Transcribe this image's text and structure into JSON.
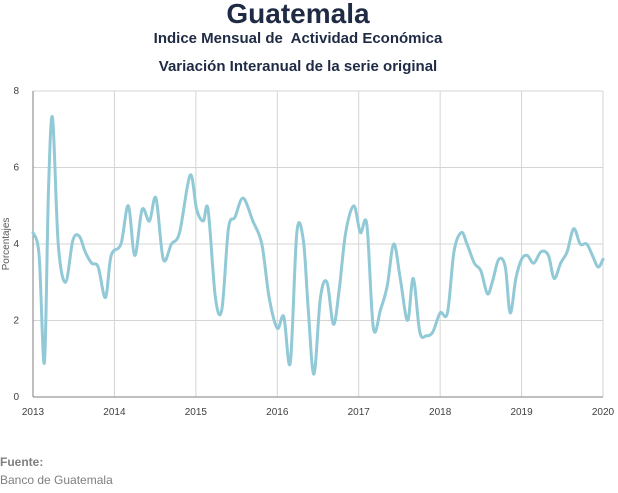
{
  "chart_data": {
    "type": "line",
    "title": "Guatemala",
    "subtitle": "Indice Mensual de  Actividad Económica",
    "subtitle2": "Variación Interanual de la serie original",
    "ylabel": "Porcentajes",
    "xlabel": "",
    "ylim": [
      0,
      8
    ],
    "xlim": [
      2013,
      2020
    ],
    "yticks": [
      0,
      2,
      4,
      6,
      8
    ],
    "xticks": [
      "2013",
      "2014",
      "2015",
      "2016",
      "2017",
      "2018",
      "2019",
      "2020"
    ],
    "grid": true,
    "legend": "none",
    "series": [
      {
        "color": "#92c9d6",
        "points": [
          [
            2013.0,
            4.3
          ],
          [
            2013.075,
            3.7
          ],
          [
            2013.14,
            0.9
          ],
          [
            2013.19,
            5.4
          ],
          [
            2013.24,
            7.3
          ],
          [
            2013.31,
            4.0
          ],
          [
            2013.4,
            3.0
          ],
          [
            2013.49,
            4.1
          ],
          [
            2013.57,
            4.2
          ],
          [
            2013.64,
            3.8
          ],
          [
            2013.72,
            3.5
          ],
          [
            2013.8,
            3.4
          ],
          [
            2013.89,
            2.6
          ],
          [
            2013.96,
            3.7
          ],
          [
            2014.08,
            4.0
          ],
          [
            2014.17,
            5.0
          ],
          [
            2014.25,
            3.7
          ],
          [
            2014.34,
            4.9
          ],
          [
            2014.43,
            4.6
          ],
          [
            2014.51,
            5.2
          ],
          [
            2014.6,
            3.6
          ],
          [
            2014.7,
            4.0
          ],
          [
            2014.8,
            4.3
          ],
          [
            2014.93,
            5.8
          ],
          [
            2015.01,
            4.9
          ],
          [
            2015.09,
            4.6
          ],
          [
            2015.15,
            4.9
          ],
          [
            2015.24,
            2.6
          ],
          [
            2015.32,
            2.3
          ],
          [
            2015.4,
            4.4
          ],
          [
            2015.48,
            4.7
          ],
          [
            2015.58,
            5.2
          ],
          [
            2015.7,
            4.6
          ],
          [
            2015.81,
            4.0
          ],
          [
            2015.9,
            2.6
          ],
          [
            2016.0,
            1.8
          ],
          [
            2016.08,
            2.1
          ],
          [
            2016.16,
            0.9
          ],
          [
            2016.24,
            4.3
          ],
          [
            2016.32,
            4.1
          ],
          [
            2016.38,
            2.3
          ],
          [
            2016.45,
            0.6
          ],
          [
            2016.53,
            2.6
          ],
          [
            2016.61,
            3.0
          ],
          [
            2016.69,
            1.9
          ],
          [
            2016.76,
            2.8
          ],
          [
            2016.84,
            4.3
          ],
          [
            2016.94,
            5.0
          ],
          [
            2017.02,
            4.3
          ],
          [
            2017.1,
            4.5
          ],
          [
            2017.18,
            1.8
          ],
          [
            2017.27,
            2.3
          ],
          [
            2017.35,
            2.9
          ],
          [
            2017.43,
            4.0
          ],
          [
            2017.51,
            3.1
          ],
          [
            2017.6,
            2.0
          ],
          [
            2017.67,
            3.1
          ],
          [
            2017.75,
            1.7
          ],
          [
            2017.83,
            1.6
          ],
          [
            2017.91,
            1.7
          ],
          [
            2018.0,
            2.2
          ],
          [
            2018.09,
            2.2
          ],
          [
            2018.17,
            3.8
          ],
          [
            2018.26,
            4.3
          ],
          [
            2018.33,
            4.0
          ],
          [
            2018.42,
            3.5
          ],
          [
            2018.5,
            3.3
          ],
          [
            2018.58,
            2.7
          ],
          [
            2018.64,
            3.0
          ],
          [
            2018.72,
            3.6
          ],
          [
            2018.8,
            3.4
          ],
          [
            2018.86,
            2.2
          ],
          [
            2018.93,
            3.1
          ],
          [
            2019.0,
            3.6
          ],
          [
            2019.07,
            3.7
          ],
          [
            2019.15,
            3.5
          ],
          [
            2019.24,
            3.8
          ],
          [
            2019.33,
            3.7
          ],
          [
            2019.4,
            3.1
          ],
          [
            2019.48,
            3.5
          ],
          [
            2019.56,
            3.8
          ],
          [
            2019.64,
            4.4
          ],
          [
            2019.72,
            4.0
          ],
          [
            2019.8,
            4.0
          ],
          [
            2019.87,
            3.7
          ],
          [
            2019.94,
            3.4
          ],
          [
            2020.0,
            3.6
          ]
        ]
      }
    ]
  },
  "source": {
    "label": "Fuente:",
    "value": "Banco de Guatemala"
  },
  "colors": {
    "line": "#92c9d6",
    "grid": "#d4d4d4",
    "axis": "#7f7f7f",
    "title": "#1f2a44"
  }
}
